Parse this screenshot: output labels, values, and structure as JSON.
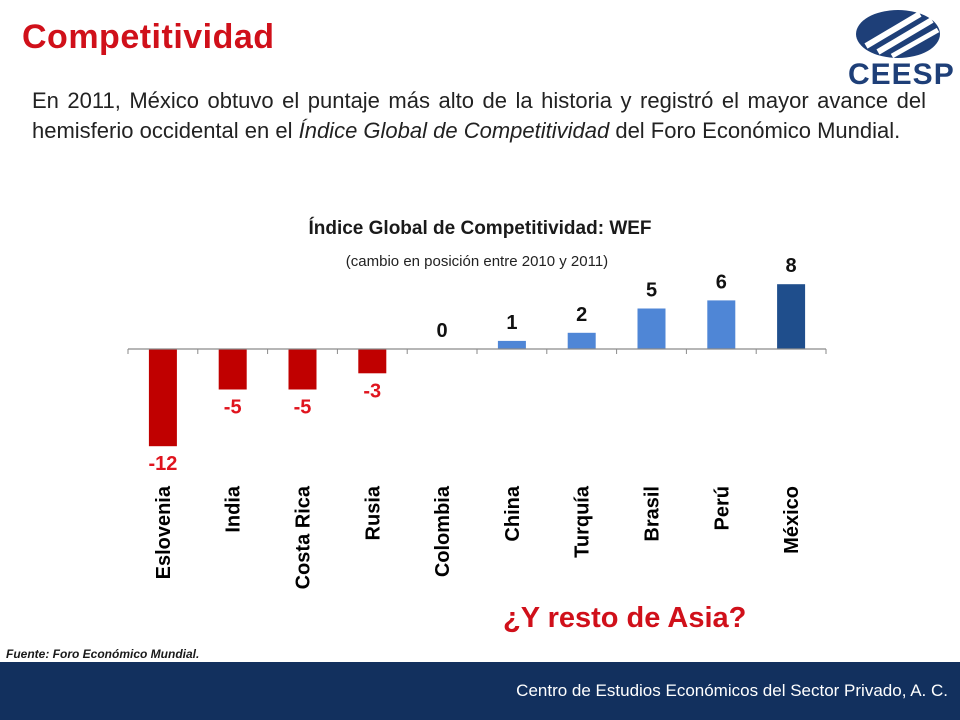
{
  "header": {
    "title": "Competitividad",
    "logo_text": "CEESP"
  },
  "intro": {
    "part1": "En 2011, México obtuvo el puntaje más alto de la historia y registró el mayor avance del hemisferio occidental en el ",
    "italic": "Índice Global de Competitividad",
    "part2": " del Foro Económico Mundial."
  },
  "chart_data": {
    "type": "bar",
    "title": "Índice Global de Competitividad: WEF",
    "subtitle": "(cambio en posición entre 2010 y 2011)",
    "categories": [
      "Eslovenia",
      "India",
      "Costa Rica",
      "Rusia",
      "Colombia",
      "China",
      "Turquía",
      "Brasil",
      "Perú",
      "México"
    ],
    "values": [
      -12,
      -5,
      -5,
      -3,
      0,
      1,
      2,
      5,
      6,
      8
    ],
    "data_labels": [
      "-12",
      "-5",
      "-5",
      "-3",
      "0",
      "1",
      "2",
      "5",
      "6",
      "8"
    ],
    "colors": {
      "negative": "#c00000",
      "positive": "#4f86d6",
      "highlight": "#1f4e8c",
      "negative_label": "#e0141e",
      "positive_label": "#111111"
    },
    "highlight_category": "México",
    "xlabel": "",
    "ylabel": "",
    "ylim": [
      -12,
      8
    ],
    "grid": false,
    "legend": "none"
  },
  "question": "¿Y resto de Asia?",
  "source": "Fuente: Foro Económico Mundial.",
  "footer": {
    "org": "Centro de Estudios Económicos del Sector Privado, A. C.",
    "background": "#12305e"
  }
}
